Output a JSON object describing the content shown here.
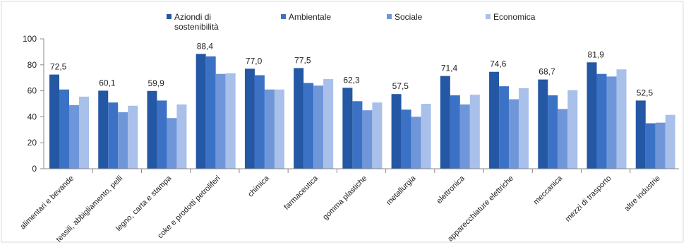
{
  "chart_data": {
    "type": "bar",
    "title": "",
    "xlabel": "",
    "ylabel": "",
    "ylim": [
      0,
      100
    ],
    "yticks": [
      0,
      20,
      40,
      60,
      80,
      100
    ],
    "grid": false,
    "legend_position": "top",
    "categories": [
      "alimentari e bevande",
      "tessili, abbigliamento, pelli",
      "legno, carta e stampa",
      "coke e prodotti petroliferi",
      "chimica",
      "farmaceutica",
      "gomma plastiche",
      "metallurgia",
      "elettronica",
      "apparecchiature elettriche",
      "meccanica",
      "mezzi di trasporto",
      "altre industrie"
    ],
    "series": [
      {
        "name": "Aziondi di sostenibilità",
        "legend_lines": [
          "Aziondi di",
          "sostenibilità"
        ],
        "color": "#2457a4",
        "values": [
          72.5,
          60.1,
          59.9,
          88.4,
          77.0,
          77.5,
          62.3,
          57.5,
          71.4,
          74.6,
          68.7,
          81.9,
          52.5
        ]
      },
      {
        "name": "Ambientale",
        "legend_lines": [
          "Ambientale"
        ],
        "color": "#3b72c6",
        "values": [
          61,
          51,
          52.5,
          86.5,
          72,
          66,
          52,
          45.5,
          56.5,
          63.5,
          56.5,
          73,
          35
        ]
      },
      {
        "name": "Sociale",
        "legend_lines": [
          "Sociale"
        ],
        "color": "#7096da",
        "values": [
          49,
          43.5,
          39,
          73,
          61,
          64,
          45,
          40,
          49.5,
          53.5,
          46,
          71,
          35.5
        ]
      },
      {
        "name": "Economica",
        "legend_lines": [
          "Economica"
        ],
        "color": "#a9c0ea",
        "values": [
          55.5,
          48.5,
          49.5,
          73.5,
          61,
          69,
          51,
          50,
          57,
          62,
          60.5,
          76.5,
          41.5
        ]
      }
    ],
    "data_labels": [
      "72,5",
      "60,1",
      "59,9",
      "88,4",
      "77,0",
      "77,5",
      "62,3",
      "57,5",
      "71,4",
      "74,6",
      "68,7",
      "81,9",
      "52,5"
    ]
  }
}
